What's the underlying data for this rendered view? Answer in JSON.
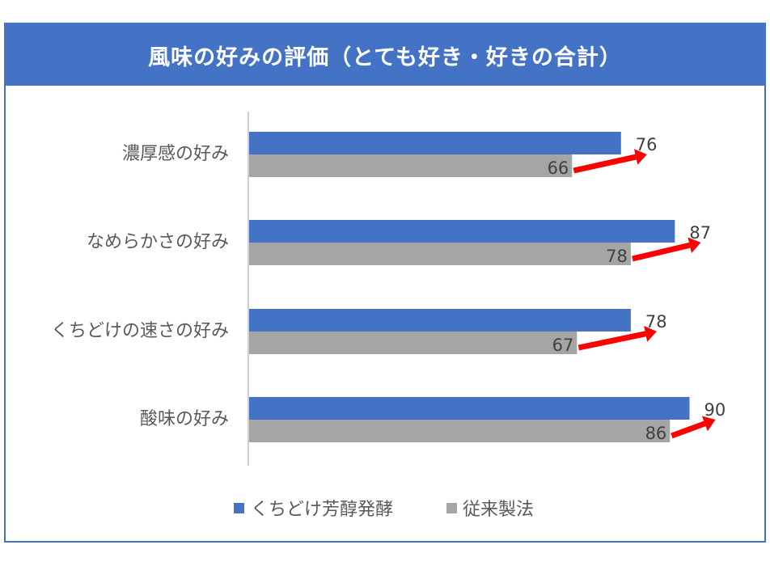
{
  "title": "風味の好みの評価（とても好き・好きの合計）",
  "colors": {
    "accent": "#4472c4",
    "series_primary": "#4472c4",
    "series_secondary": "#a5a5a5",
    "arrow": "#ff0000"
  },
  "chart_data": {
    "type": "bar",
    "orientation": "horizontal",
    "title": "風味の好みの評価（とても好き・好きの合計）",
    "categories": [
      "濃厚感の好み",
      "なめらかさの好み",
      "くちどけの速さの好み",
      "酸味の好み"
    ],
    "series": [
      {
        "name": "くちどけ芳醇発酵",
        "values": [
          76,
          87,
          78,
          90
        ],
        "color": "#4472c4"
      },
      {
        "name": "従来製法",
        "values": [
          66,
          78,
          67,
          86
        ],
        "color": "#a5a5a5"
      }
    ],
    "xlim": [
      0,
      100
    ],
    "grid": false,
    "legend": "bottom",
    "annotations": "red arrows from 従来製法 value to くちどけ芳醇発酵 value"
  }
}
